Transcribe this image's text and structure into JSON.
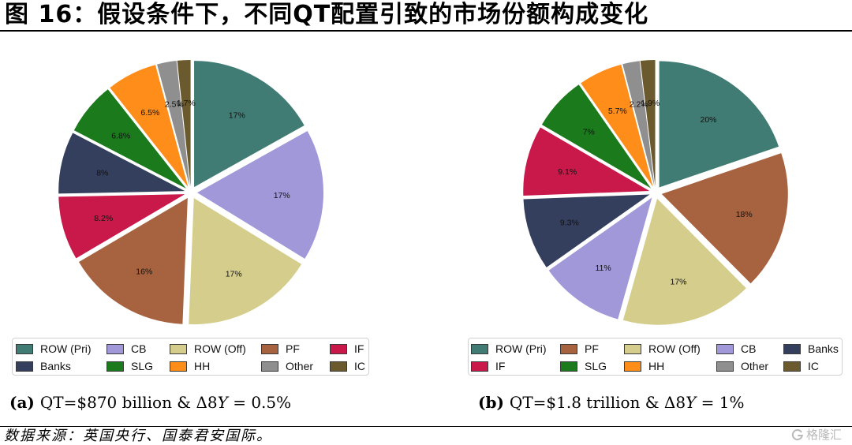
{
  "header": {
    "title": "图 16：假设条件下，不同QT配置引致的市场份额构成变化"
  },
  "chart_data": [
    {
      "type": "pie",
      "exploded": true,
      "legend_placement": "bottom",
      "caption": {
        "tag": "(a)",
        "text": "QT=$870 billion & Δ8",
        "var": "Y",
        "rest": " = 0.5%"
      },
      "slices": [
        {
          "name": "ROW (Pri)",
          "value": 17,
          "label": "17%"
        },
        {
          "name": "CB",
          "value": 17,
          "label": "17%"
        },
        {
          "name": "ROW (Off)",
          "value": 17,
          "label": "17%"
        },
        {
          "name": "PF",
          "value": 16,
          "label": "16%"
        },
        {
          "name": "IF",
          "value": 8.2,
          "label": "8.2%"
        },
        {
          "name": "Banks",
          "value": 8,
          "label": "8%"
        },
        {
          "name": "SLG",
          "value": 6.8,
          "label": "6.8%"
        },
        {
          "name": "HH",
          "value": 6.5,
          "label": "6.5%"
        },
        {
          "name": "Other",
          "value": 2.5,
          "label": "2.5%"
        },
        {
          "name": "IC",
          "value": 1.7,
          "label": "1.7%"
        }
      ]
    },
    {
      "type": "pie",
      "exploded": true,
      "legend_placement": "bottom",
      "caption": {
        "tag": "(b)",
        "text": "QT=$1.8 trillion & Δ8",
        "var": "Y",
        "rest": " = 1%"
      },
      "slices": [
        {
          "name": "ROW (Pri)",
          "value": 20,
          "label": "20%"
        },
        {
          "name": "PF",
          "value": 18,
          "label": "18%"
        },
        {
          "name": "ROW (Off)",
          "value": 17,
          "label": "17%"
        },
        {
          "name": "CB",
          "value": 11,
          "label": "11%"
        },
        {
          "name": "Banks",
          "value": 9.3,
          "label": "9.3%"
        },
        {
          "name": "IF",
          "value": 9.1,
          "label": "9.1%"
        },
        {
          "name": "SLG",
          "value": 7,
          "label": "7%"
        },
        {
          "name": "HH",
          "value": 5.7,
          "label": "5.7%"
        },
        {
          "name": "Other",
          "value": 2.2,
          "label": "2.2%"
        },
        {
          "name": "IC",
          "value": 1.9,
          "label": "1.9%"
        }
      ]
    }
  ],
  "colors": {
    "ROW (Pri)": "#407c73",
    "CB": "#a098d8",
    "ROW (Off)": "#d4cd8c",
    "PF": "#a7623f",
    "IF": "#c9184a",
    "Banks": "#343f5e",
    "SLG": "#1a7a1c",
    "HH": "#ff8d1a",
    "Other": "#8f8f8f",
    "IC": "#6b5a2e"
  },
  "footer": {
    "source": "数据来源：英国央行、国泰君安国际。",
    "watermark": "格隆汇",
    "watermark_icon": "glh-logo-icon"
  }
}
